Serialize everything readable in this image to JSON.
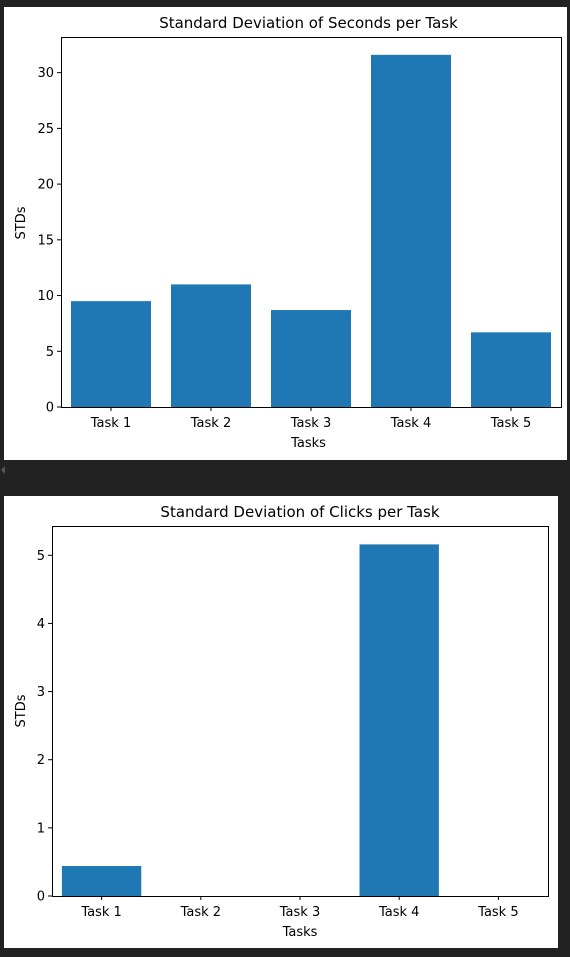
{
  "colors": {
    "page_background": "#222222",
    "panel_background": "#ffffff",
    "bar": "#1f77b4"
  },
  "chart_data": [
    {
      "type": "bar",
      "title": "Standard Deviation of Seconds per Task",
      "xlabel": "Tasks",
      "ylabel": "STDs",
      "categories": [
        "Task 1",
        "Task 2",
        "Task 3",
        "Task 4",
        "Task 5"
      ],
      "values": [
        9.5,
        11.0,
        8.7,
        31.6,
        6.7
      ],
      "ylim": [
        0,
        33.2
      ],
      "yticks": [
        "0",
        "5",
        "10",
        "15",
        "20",
        "25",
        "30"
      ],
      "grid": false
    },
    {
      "type": "bar",
      "title": "Standard Deviation of Clicks per Task",
      "xlabel": "Tasks",
      "ylabel": "STDs",
      "categories": [
        "Task 1",
        "Task 2",
        "Task 3",
        "Task 4",
        "Task 5"
      ],
      "values": [
        0.44,
        0,
        0,
        5.16,
        0
      ],
      "ylim": [
        0,
        5.43
      ],
      "yticks": [
        "0",
        "1",
        "2",
        "3",
        "4",
        "5"
      ],
      "grid": false
    }
  ]
}
